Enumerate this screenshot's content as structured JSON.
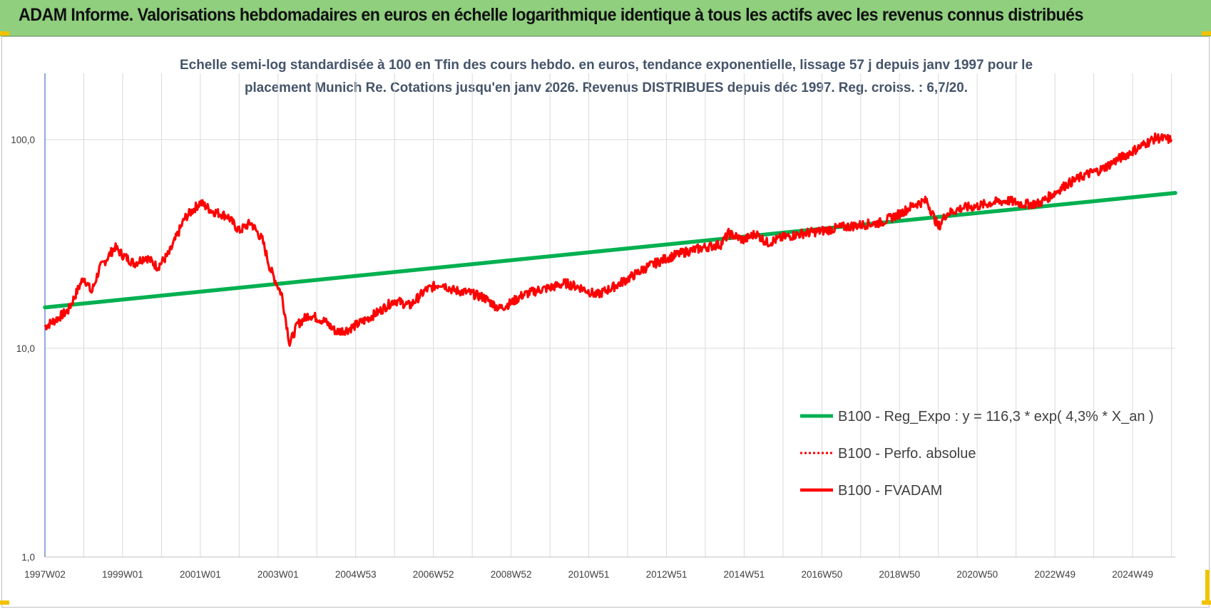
{
  "banner": {
    "title": "ADAM Informe. Valorisations hebdomadaires en euros en échelle logarithmique identique à tous les actifs avec les revenus connus distribués"
  },
  "colors": {
    "banner_bg": "#8fcf7e",
    "regression": "#00b050",
    "fvadam": "#ff0000",
    "perfo": "#ff0000",
    "title": "#44546a",
    "grid": "#d9d9d9"
  },
  "chart_data": {
    "type": "line",
    "title_line1": "Echelle semi-log standardisée à 100 en Tfin des cours hebdo. en euros, tendance exponentielle, lissage 57 j depuis janv 1997 pour le",
    "title_line2": "placement Munich Re. Cotations jusqu'en janv 2026. Revenus DISTRIBUES depuis déc 1997. Reg. croiss. : 6,7/20.",
    "y_scale": "log",
    "ylim": [
      1,
      200
    ],
    "y_ticks": [
      "1,0",
      "10,0",
      "100,0"
    ],
    "x_ticks": [
      "1997W02",
      "1999W01",
      "2001W01",
      "2003W01",
      "2004W53",
      "2006W52",
      "2008W52",
      "2010W51",
      "2012W51",
      "2014W51",
      "2016W50",
      "2018W50",
      "2020W50",
      "2022W49",
      "2024W49"
    ],
    "xlim": [
      1997.0,
      2026.1
    ],
    "grid": true,
    "legend_position": "bottom-right",
    "series": [
      {
        "name": "B100 - Reg_Expo : y = 116,3 * exp( 4,3% *  X_an )",
        "style": "solid-thick",
        "color": "#00b050",
        "x": [
          1997.0,
          2026.1
        ],
        "y": [
          15.7,
          55.5
        ]
      },
      {
        "name": "B100 - Perfo. absolue",
        "style": "dotted",
        "color": "#ff0000",
        "x": [],
        "y": []
      },
      {
        "name": "B100 - FVADAM",
        "style": "solid",
        "color": "#ff0000",
        "x": [
          1997.0,
          1997.3,
          1997.6,
          1998.0,
          1998.2,
          1998.4,
          1998.8,
          1999.0,
          1999.3,
          1999.6,
          1999.9,
          2000.2,
          2000.6,
          2001.0,
          2001.3,
          2001.7,
          2002.0,
          2002.3,
          2002.6,
          2002.8,
          2003.1,
          2003.3,
          2003.5,
          2003.8,
          2004.2,
          2004.5,
          2004.8,
          2005.2,
          2005.6,
          2006.0,
          2006.4,
          2006.8,
          2007.2,
          2007.5,
          2007.9,
          2008.3,
          2008.7,
          2009.0,
          2009.3,
          2009.7,
          2010.0,
          2010.4,
          2010.8,
          2011.2,
          2011.6,
          2012.0,
          2012.5,
          2013.0,
          2013.5,
          2014.0,
          2014.4,
          2014.6,
          2015.0,
          2015.3,
          2015.6,
          2016.0,
          2016.5,
          2017.0,
          2017.5,
          2018.0,
          2018.5,
          2019.0,
          2019.4,
          2019.7,
          2020.0,
          2020.2,
          2020.6,
          2021.0,
          2021.4,
          2021.8,
          2022.2,
          2022.6,
          2022.9,
          2023.3,
          2023.8,
          2024.2,
          2024.6,
          2025.0,
          2025.3,
          2025.6,
          2026.0
        ],
        "y": [
          12.7,
          13.8,
          15.2,
          22.0,
          18.5,
          24.0,
          30.5,
          28.0,
          25.5,
          27.5,
          24.5,
          28.5,
          42.0,
          50.0,
          45.5,
          43.0,
          36.5,
          40.0,
          33.0,
          24.0,
          18.0,
          10.5,
          13.0,
          14.5,
          13.5,
          12.0,
          12.3,
          13.5,
          15.0,
          17.0,
          16.0,
          19.0,
          20.5,
          19.0,
          18.5,
          17.5,
          15.5,
          16.5,
          18.0,
          19.0,
          19.5,
          20.5,
          19.5,
          18.0,
          19.5,
          21.5,
          24.5,
          27.0,
          29.0,
          30.5,
          31.5,
          35.5,
          33.0,
          35.5,
          32.0,
          34.0,
          35.5,
          36.5,
          38.0,
          39.0,
          40.0,
          44.0,
          49.0,
          51.0,
          38.0,
          44.0,
          47.0,
          48.0,
          50.0,
          51.0,
          49.0,
          49.5,
          54.0,
          61.0,
          68.0,
          72.0,
          80.0,
          88.0,
          95.0,
          102.0,
          100.0
        ]
      }
    ]
  }
}
